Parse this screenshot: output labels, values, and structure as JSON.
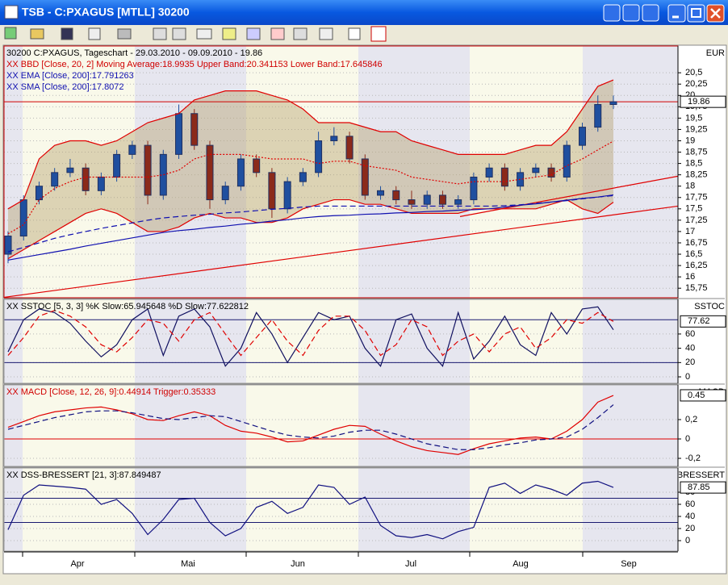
{
  "window": {
    "title": "TSB - C:PXAGUS [MTLL] 30200"
  },
  "time_axis": {
    "labels": [
      "Apr",
      "Mai",
      "Jun",
      "Jul",
      "Aug",
      "Sep"
    ]
  },
  "chart_data": [
    {
      "type": "candlestick",
      "axis_title": "EUR",
      "legend": [
        "30200  C:PXAGUS, Tageschart - 29.03.2010 - 09.09.2010 - 19.86",
        "XX BBD [Close, 20, 2] Moving Average:18.9935 Upper Band:20.341153 Lower Band:17.645846",
        "XX EMA [Close, 200]:17.791263",
        "XX SMA [Close, 200]:17.8072"
      ],
      "legend_colors": [
        "#000000",
        "#d00000",
        "#1010b0",
        "#1010b0"
      ],
      "ylim": [
        15.54,
        21.09
      ],
      "yticks": [
        {
          "value": 15.75,
          "label": "15,75"
        },
        16,
        {
          "value": 16.25,
          "label": "16,25"
        },
        {
          "value": 16.5,
          "label": "16,5"
        },
        {
          "value": 16.75,
          "label": "16,75"
        },
        17,
        {
          "value": 17.25,
          "label": "17,25"
        },
        {
          "value": 17.5,
          "label": "17,5"
        },
        {
          "value": 17.75,
          "label": "17,75"
        },
        18,
        {
          "value": 18.25,
          "label": "18,25"
        },
        {
          "value": 18.5,
          "label": "18,5"
        },
        {
          "value": 18.75,
          "label": "18,75"
        },
        19,
        {
          "value": 19.25,
          "label": "19,25"
        },
        {
          "value": 19.5,
          "label": "19,5"
        },
        {
          "value": 19.75,
          "label": "19,75"
        },
        20,
        {
          "value": 20.25,
          "label": "20,25"
        },
        {
          "value": 20.5,
          "label": "20,5"
        }
      ],
      "grid": true,
      "last_label": 19.86,
      "last_line_color": "#d00000",
      "up_color": "#1f4f9f",
      "down_color": "#8b2a1a",
      "open": [
        16.5,
        16.9,
        17.7,
        18.0,
        18.3,
        18.4,
        17.9,
        18.2,
        18.7,
        18.9,
        17.8,
        18.7,
        19.6,
        18.9,
        17.7,
        18.0,
        18.6,
        18.3,
        17.5,
        18.1,
        18.3,
        19.0,
        19.1,
        18.6,
        17.8,
        17.9,
        17.7,
        17.6,
        17.8,
        17.6,
        17.7,
        18.2,
        18.4,
        18.0,
        18.3,
        18.4,
        18.2,
        18.9,
        19.3,
        19.8
      ],
      "high": [
        17.0,
        17.8,
        18.1,
        18.4,
        18.6,
        18.5,
        18.3,
        18.8,
        19.0,
        19.0,
        18.8,
        19.8,
        19.7,
        19.0,
        18.1,
        18.7,
        18.7,
        18.4,
        18.2,
        18.4,
        19.2,
        19.3,
        19.2,
        18.7,
        18.0,
        18.0,
        17.9,
        17.9,
        17.9,
        17.8,
        18.3,
        18.5,
        18.5,
        18.4,
        18.5,
        18.5,
        19.0,
        19.4,
        20.0,
        20.0
      ],
      "low": [
        16.3,
        16.8,
        17.6,
        17.9,
        18.2,
        17.8,
        17.8,
        18.1,
        18.6,
        17.6,
        17.7,
        18.6,
        18.8,
        17.5,
        17.6,
        17.9,
        18.2,
        17.3,
        17.4,
        18.0,
        18.2,
        18.9,
        18.5,
        17.7,
        17.7,
        17.6,
        17.5,
        17.5,
        17.5,
        17.5,
        17.6,
        18.1,
        17.9,
        17.9,
        18.2,
        18.1,
        18.1,
        18.8,
        19.2,
        19.7
      ],
      "close": [
        16.9,
        17.7,
        18.0,
        18.3,
        18.4,
        17.9,
        18.2,
        18.7,
        18.9,
        17.8,
        18.7,
        19.6,
        18.9,
        17.7,
        18.0,
        18.6,
        18.3,
        17.5,
        18.1,
        18.3,
        19.0,
        19.1,
        18.6,
        17.8,
        17.9,
        17.7,
        17.6,
        17.8,
        17.6,
        17.7,
        18.2,
        18.4,
        18.0,
        18.3,
        18.4,
        18.2,
        18.9,
        19.3,
        19.8,
        19.86
      ],
      "series": [
        {
          "color": "#e00000",
          "dash": "solid",
          "fill_to_next": "#b8a474",
          "values": [
            17.5,
            17.7,
            18.6,
            18.9,
            19.0,
            19.0,
            18.9,
            19.0,
            19.2,
            19.4,
            19.5,
            19.6,
            19.9,
            20.0,
            20.1,
            20.1,
            20.1,
            20.0,
            19.9,
            19.7,
            19.4,
            19.4,
            19.4,
            19.3,
            19.2,
            19.2,
            19.0,
            18.9,
            18.8,
            18.7,
            18.7,
            18.7,
            18.7,
            18.8,
            18.9,
            18.9,
            19.2,
            19.7,
            20.2,
            20.341153
          ]
        },
        {
          "color": "#e00000",
          "dash": "solid",
          "values": [
            16.4,
            16.6,
            16.8,
            17.0,
            17.2,
            17.4,
            17.5,
            17.4,
            17.2,
            17.0,
            17.0,
            17.1,
            17.3,
            17.4,
            17.3,
            17.3,
            17.2,
            17.2,
            17.3,
            17.5,
            17.6,
            17.7,
            17.7,
            17.6,
            17.6,
            17.5,
            17.4,
            17.4,
            17.4,
            17.4,
            17.5,
            17.5,
            17.5,
            17.5,
            17.5,
            17.6,
            17.7,
            17.5,
            17.4,
            17.645846
          ]
        },
        {
          "color": "#e00000",
          "dash": "dotted",
          "values": [
            16.95,
            17.15,
            17.7,
            17.95,
            18.1,
            18.2,
            18.2,
            18.2,
            18.2,
            18.2,
            18.25,
            18.35,
            18.6,
            18.7,
            18.7,
            18.7,
            18.65,
            18.6,
            18.6,
            18.6,
            18.5,
            18.55,
            18.55,
            18.45,
            18.4,
            18.35,
            18.2,
            18.15,
            18.1,
            18.05,
            18.1,
            18.1,
            18.1,
            18.15,
            18.2,
            18.25,
            18.45,
            18.6,
            18.8,
            18.9935
          ]
        },
        {
          "color": "#1010b0",
          "dash": "dashed",
          "values": [
            16.55,
            16.65,
            16.75,
            16.85,
            16.93,
            17.0,
            17.07,
            17.13,
            17.19,
            17.25,
            17.3,
            17.33,
            17.36,
            17.38,
            17.41,
            17.43,
            17.46,
            17.49,
            17.51,
            17.54,
            17.56,
            17.56,
            17.56,
            17.56,
            17.56,
            17.56,
            17.56,
            17.56,
            17.56,
            17.56,
            17.56,
            17.56,
            17.57,
            17.59,
            17.62,
            17.65,
            17.68,
            17.72,
            17.76,
            17.791263
          ]
        },
        {
          "color": "#1010b0",
          "dash": "solid",
          "values": [
            16.37,
            16.43,
            16.49,
            16.55,
            16.61,
            16.68,
            16.74,
            16.8,
            16.86,
            16.92,
            16.98,
            17.02,
            17.05,
            17.09,
            17.12,
            17.16,
            17.19,
            17.23,
            17.26,
            17.3,
            17.33,
            17.35,
            17.36,
            17.38,
            17.39,
            17.41,
            17.42,
            17.44,
            17.45,
            17.47,
            17.48,
            17.5,
            17.54,
            17.58,
            17.61,
            17.65,
            17.69,
            17.73,
            17.76,
            17.8072
          ]
        }
      ],
      "trendlines": [
        {
          "color": "#e00000",
          "values": [
            15.55,
            17.56
          ]
        },
        {
          "color": "#e00000",
          "values": [
            17.33,
            18.22
          ]
        }
      ]
    },
    {
      "type": "line",
      "axis_title": "SSTOC",
      "legend": [
        "XX SSTOC [5, 3, 3] %K Slow:65.945648 %D Slow:77.622812"
      ],
      "legend_colors": [
        "#000000"
      ],
      "ylim": [
        -9,
        108.5
      ],
      "yticks": [
        0,
        20,
        40,
        60
      ],
      "grid": true,
      "last_label": 77.62,
      "hlines": [
        20,
        80
      ],
      "hline_color": "#1a1a70",
      "series": [
        {
          "color": "#101060",
          "dash": "solid",
          "values": [
            35,
            80,
            95,
            90,
            75,
            50,
            28,
            45,
            80,
            95,
            30,
            85,
            95,
            70,
            15,
            40,
            90,
            60,
            20,
            55,
            90,
            80,
            85,
            40,
            15,
            80,
            88,
            40,
            15,
            90,
            25,
            50,
            85,
            45,
            30,
            90,
            60,
            95,
            98,
            65.95
          ]
        },
        {
          "color": "#e00000",
          "dash": "dashed",
          "values": [
            30,
            55,
            85,
            93,
            85,
            70,
            45,
            35,
            55,
            80,
            75,
            50,
            80,
            90,
            60,
            30,
            55,
            80,
            50,
            30,
            65,
            85,
            85,
            65,
            30,
            45,
            80,
            70,
            30,
            50,
            60,
            35,
            60,
            70,
            40,
            55,
            80,
            75,
            90,
            77.62
          ]
        }
      ]
    },
    {
      "type": "line",
      "axis_title": "MACD",
      "legend": [
        "XX MACD [Close, 12, 26, 9]:0.44914 Trigger:0.35333"
      ],
      "legend_colors": [
        "#d00000"
      ],
      "ylim": [
        -0.283,
        0.558
      ],
      "yticks": [
        {
          "value": -0.2,
          "label": "-0,2"
        },
        0,
        {
          "value": 0.2,
          "label": "0,2"
        }
      ],
      "grid": true,
      "last_label": 0.45,
      "hlines": [
        0
      ],
      "hline_color": "#e00000",
      "series": [
        {
          "color": "#e00000",
          "dash": "solid",
          "values": [
            0.12,
            0.18,
            0.24,
            0.28,
            0.3,
            0.32,
            0.33,
            0.3,
            0.26,
            0.2,
            0.19,
            0.24,
            0.28,
            0.24,
            0.14,
            0.08,
            0.06,
            0.02,
            -0.03,
            -0.02,
            0.04,
            0.1,
            0.14,
            0.13,
            0.05,
            -0.02,
            -0.08,
            -0.12,
            -0.14,
            -0.16,
            -0.1,
            -0.05,
            -0.02,
            0.01,
            0.02,
            0.0,
            0.08,
            0.2,
            0.38,
            0.44914
          ]
        },
        {
          "color": "#101080",
          "dash": "dashed",
          "values": [
            0.1,
            0.14,
            0.18,
            0.22,
            0.25,
            0.28,
            0.29,
            0.29,
            0.27,
            0.24,
            0.21,
            0.2,
            0.22,
            0.24,
            0.23,
            0.18,
            0.13,
            0.08,
            0.04,
            0.02,
            0.01,
            0.03,
            0.07,
            0.09,
            0.09,
            0.05,
            0.0,
            -0.05,
            -0.08,
            -0.11,
            -0.11,
            -0.09,
            -0.06,
            -0.04,
            -0.01,
            0.0,
            0.02,
            0.1,
            0.22,
            0.35333
          ]
        }
      ]
    },
    {
      "type": "line",
      "axis_title": "DSS-BRESSERT",
      "legend": [
        "XX DSS-BRESSERT [21, 3]:87.849487"
      ],
      "legend_colors": [
        "#000000"
      ],
      "ylim": [
        -17.3,
        120
      ],
      "yticks": [
        0,
        20,
        40,
        60,
        80
      ],
      "grid": true,
      "last_label": 87.85,
      "hlines": [
        30,
        70
      ],
      "hline_color": "#1a1a70",
      "series": [
        {
          "color": "#101080",
          "dash": "solid",
          "values": [
            18,
            75,
            92,
            90,
            88,
            85,
            60,
            68,
            45,
            10,
            35,
            68,
            70,
            30,
            8,
            20,
            55,
            65,
            45,
            55,
            92,
            88,
            60,
            72,
            25,
            8,
            5,
            10,
            3,
            15,
            22,
            88,
            95,
            78,
            92,
            85,
            75,
            95,
            98,
            87.85
          ]
        }
      ]
    }
  ]
}
